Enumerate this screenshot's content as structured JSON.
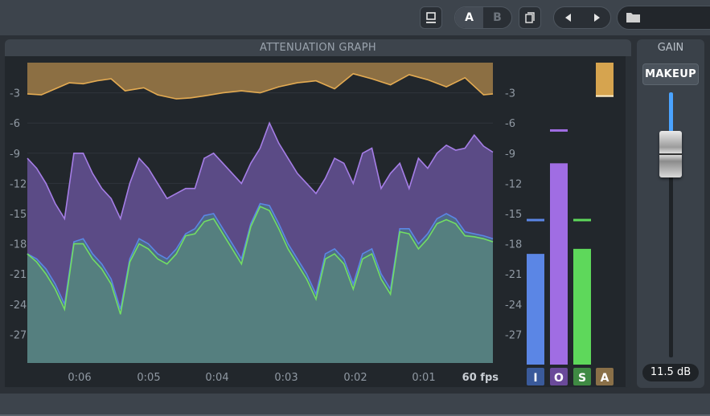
{
  "toolbar": {
    "ab_a": "A",
    "ab_b": "B"
  },
  "graph": {
    "title": "ATTENUATION GRAPH",
    "fps_label": "60 fps",
    "y_ticks": [
      "-3",
      "-6",
      "-9",
      "-12",
      "-15",
      "-18",
      "-21",
      "-24",
      "-27"
    ],
    "x_ticks": [
      "0:06",
      "0:05",
      "0:04",
      "0:03",
      "0:02",
      "0:01"
    ]
  },
  "meters": {
    "labels": [
      "I",
      "O",
      "S",
      "A"
    ],
    "colors": {
      "input": "#5b86e5",
      "output": "#a06de3",
      "sidechain": "#5ed85b",
      "attenuation": "#d6a44f"
    },
    "input_level": -19,
    "input_peak": -15.6,
    "output_level": -10,
    "output_peak": -6.7,
    "sidechain_level": -18.5,
    "sidechain_peak": -15.6,
    "attenuation_level": -3.4
  },
  "gain": {
    "title": "GAIN",
    "makeup_label": "MAKEUP",
    "value": "11.5 dB"
  },
  "chart_data": {
    "type": "area",
    "title": "ATTENUATION GRAPH",
    "xlabel": "",
    "ylabel": "",
    "ylim": [
      -30,
      0
    ],
    "x_ticks": [
      "0:06",
      "0:05",
      "0:04",
      "0:03",
      "0:02",
      "0:01"
    ],
    "series": [
      {
        "name": "A",
        "color": "#d6a44f",
        "x": [
          0,
          3,
          6,
          9,
          12,
          15,
          18,
          21,
          25,
          28,
          32,
          35,
          38,
          42,
          46,
          50,
          54,
          58,
          62,
          66,
          70,
          74,
          78,
          82,
          86,
          90,
          94,
          98,
          100
        ],
        "values": [
          -3.1,
          -3.2,
          -2.6,
          -2.0,
          -2.1,
          -1.8,
          -1.6,
          -2.8,
          -2.5,
          -3.2,
          -3.6,
          -3.5,
          -3.3,
          -3.0,
          -2.8,
          -3.0,
          -2.4,
          -2.0,
          -1.8,
          -2.6,
          -1.1,
          -1.6,
          -2.2,
          -1.2,
          -1.7,
          -2.4,
          -1.5,
          -3.2,
          -3.1
        ]
      },
      {
        "name": "O",
        "color": "#8f68c9",
        "x": [
          0,
          2,
          4,
          6,
          8,
          10,
          12,
          14,
          16,
          18,
          20,
          22,
          24,
          26,
          28,
          30,
          32,
          34,
          36,
          38,
          40,
          42,
          44,
          46,
          48,
          50,
          52,
          54,
          56,
          58,
          60,
          62,
          64,
          66,
          68,
          70,
          72,
          74,
          76,
          78,
          80,
          82,
          84,
          86,
          88,
          90,
          92,
          94,
          96,
          98,
          100
        ],
        "values": [
          -9.5,
          -10.5,
          -12,
          -14,
          -15.5,
          -9,
          -9,
          -11,
          -12.5,
          -13.5,
          -15.5,
          -12,
          -9.5,
          -10.5,
          -12,
          -13.5,
          -13,
          -12.5,
          -12.5,
          -9.5,
          -9,
          -10,
          -11,
          -12,
          -10,
          -8.5,
          -6,
          -8,
          -9.5,
          -11,
          -12,
          -13,
          -11.5,
          -9.5,
          -10,
          -12,
          -9,
          -8.5,
          -12.5,
          -11,
          -10,
          -12.5,
          -9.5,
          -10.5,
          -9,
          -8.2,
          -8.7,
          -8.5,
          -7.2,
          -8.3,
          -8.9
        ]
      },
      {
        "name": "I",
        "color": "#5b86e5",
        "x": [
          0,
          2,
          4,
          6,
          8,
          10,
          12,
          14,
          16,
          18,
          20,
          22,
          24,
          26,
          28,
          30,
          32,
          34,
          36,
          38,
          40,
          42,
          44,
          46,
          48,
          50,
          52,
          54,
          56,
          58,
          60,
          62,
          64,
          66,
          68,
          70,
          72,
          74,
          76,
          78,
          80,
          82,
          84,
          86,
          88,
          90,
          92,
          94,
          96,
          98,
          100
        ],
        "values": [
          -19,
          -19.5,
          -20.5,
          -22,
          -24,
          -17.8,
          -17.5,
          -19,
          -20,
          -21.5,
          -24.5,
          -19.5,
          -17.5,
          -18,
          -19,
          -19.5,
          -18.5,
          -17,
          -16.5,
          -15.2,
          -15,
          -16.5,
          -18,
          -19.5,
          -16,
          -14,
          -14.2,
          -16,
          -18,
          -19.5,
          -21,
          -23,
          -19,
          -18.5,
          -19.5,
          -22,
          -19,
          -18.5,
          -21,
          -22.5,
          -16.5,
          -16.5,
          -18,
          -17,
          -15.5,
          -15,
          -15.5,
          -16.8,
          -17,
          -17.2,
          -17.5
        ]
      },
      {
        "name": "S",
        "color": "#5ed85b",
        "x": [
          0,
          2,
          4,
          6,
          8,
          10,
          12,
          14,
          16,
          18,
          20,
          22,
          24,
          26,
          28,
          30,
          32,
          34,
          36,
          38,
          40,
          42,
          44,
          46,
          48,
          50,
          52,
          54,
          56,
          58,
          60,
          62,
          64,
          66,
          68,
          70,
          72,
          74,
          76,
          78,
          80,
          82,
          84,
          86,
          88,
          90,
          92,
          94,
          96,
          98,
          100
        ],
        "values": [
          -19,
          -19.8,
          -21,
          -22.5,
          -24.5,
          -18,
          -18,
          -19.5,
          -20.5,
          -22,
          -25,
          -19.8,
          -18,
          -18.5,
          -19.5,
          -20,
          -19,
          -17.2,
          -17,
          -15.8,
          -15.5,
          -17,
          -18.5,
          -20,
          -16.3,
          -14.3,
          -14.7,
          -16.5,
          -18.5,
          -20,
          -21.5,
          -23.5,
          -19.5,
          -19,
          -20,
          -22.5,
          -19.5,
          -19,
          -21.5,
          -23,
          -16.8,
          -17,
          -18.5,
          -17.5,
          -16,
          -15.6,
          -16,
          -17.2,
          -17.3,
          -17.5,
          -17.8
        ]
      }
    ]
  }
}
